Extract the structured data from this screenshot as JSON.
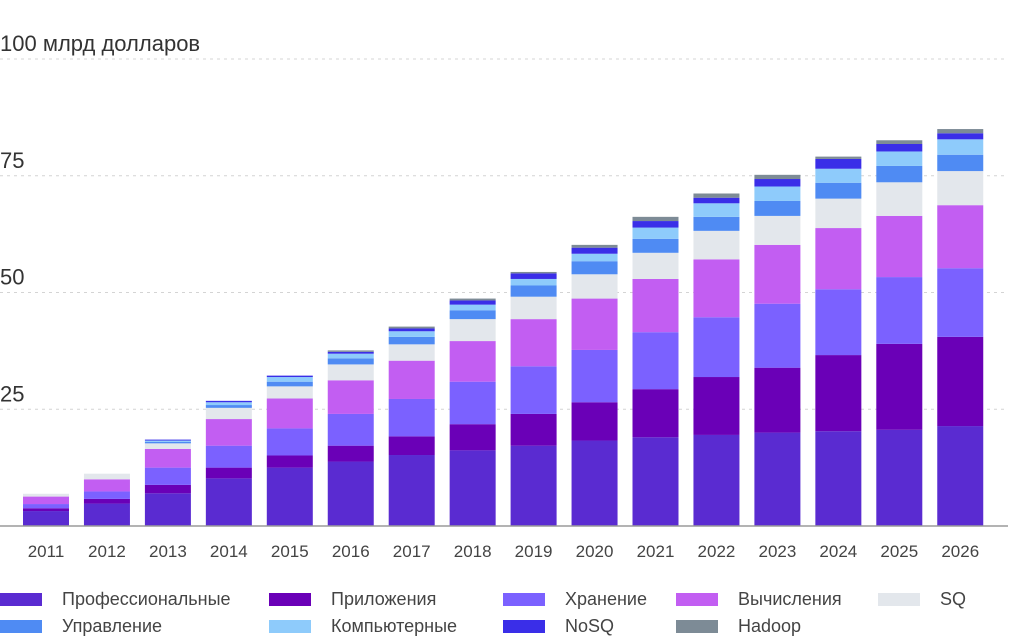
{
  "chart_data": {
    "type": "bar",
    "stacked": true,
    "title": "",
    "ylabel": "100 млрд долларов",
    "xlabel": "",
    "ylim": [
      0,
      100
    ],
    "yticks": [
      {
        "value": 25,
        "label": "25"
      },
      {
        "value": 50,
        "label": "50"
      },
      {
        "value": 75,
        "label": "75"
      },
      {
        "value": 100,
        "label": "100 млрд долларов"
      }
    ],
    "grid": true,
    "legend_position": "bottom",
    "categories": [
      "2011",
      "2012",
      "2013",
      "2014",
      "2015",
      "2016",
      "2017",
      "2018",
      "2019",
      "2020",
      "2021",
      "2022",
      "2023",
      "2024",
      "2025",
      "2026"
    ],
    "series": [
      {
        "name": "Профессиональные",
        "color": "#5a2bd1",
        "values": [
          3.2,
          4.8,
          7.0,
          10.2,
          12.5,
          13.8,
          15.2,
          16.2,
          17.2,
          18.3,
          19.0,
          19.5,
          20.0,
          20.3,
          20.6,
          21.4
        ]
      },
      {
        "name": "Приложения",
        "color": "#6a00b7",
        "values": [
          0.6,
          1.0,
          1.8,
          2.3,
          2.6,
          3.4,
          4.0,
          5.6,
          6.8,
          8.2,
          10.3,
          12.4,
          13.9,
          16.3,
          18.4,
          19.1
        ]
      },
      {
        "name": "Хранение",
        "color": "#7b61ff",
        "values": [
          0.9,
          1.6,
          3.7,
          4.7,
          5.8,
          6.8,
          8.0,
          9.1,
          10.2,
          11.2,
          12.2,
          12.8,
          13.7,
          14.1,
          14.3,
          14.7
        ]
      },
      {
        "name": "Вычисления",
        "color": "#c25ef2",
        "values": [
          1.6,
          2.6,
          4.0,
          5.7,
          6.4,
          7.2,
          8.2,
          8.7,
          10.1,
          11.0,
          11.4,
          12.4,
          12.6,
          13.1,
          13.1,
          13.5
        ]
      },
      {
        "name": "SQ",
        "color": "#e3e7ec",
        "values": [
          0.6,
          1.2,
          1.2,
          2.4,
          2.6,
          3.4,
          3.5,
          4.7,
          4.8,
          5.2,
          5.6,
          6.1,
          6.2,
          6.3,
          7.2,
          7.3
        ]
      },
      {
        "name": "Управление",
        "color": "#4f8bf3",
        "values": [
          0.0,
          0.0,
          0.3,
          0.6,
          1.0,
          1.3,
          1.6,
          1.9,
          2.4,
          2.8,
          3.0,
          3.0,
          3.2,
          3.4,
          3.5,
          3.5
        ]
      },
      {
        "name": "Компьютерные",
        "color": "#8ecbfb",
        "values": [
          0.0,
          0.0,
          0.3,
          0.6,
          1.0,
          1.0,
          1.2,
          1.2,
          1.4,
          1.6,
          2.4,
          2.9,
          3.1,
          3.0,
          3.1,
          3.3
        ]
      },
      {
        "name": "NoSQ",
        "color": "#3a2ee8",
        "values": [
          0.0,
          0.0,
          0.2,
          0.3,
          0.3,
          0.4,
          0.6,
          0.9,
          1.2,
          1.3,
          1.4,
          1.2,
          1.6,
          2.1,
          1.6,
          1.3
        ]
      },
      {
        "name": "Hadoop",
        "color": "#7d8b96",
        "values": [
          0.0,
          0.0,
          0.0,
          0.0,
          0.0,
          0.3,
          0.4,
          0.4,
          0.3,
          0.6,
          0.9,
          0.9,
          0.9,
          0.5,
          0.8,
          0.9
        ]
      }
    ]
  }
}
